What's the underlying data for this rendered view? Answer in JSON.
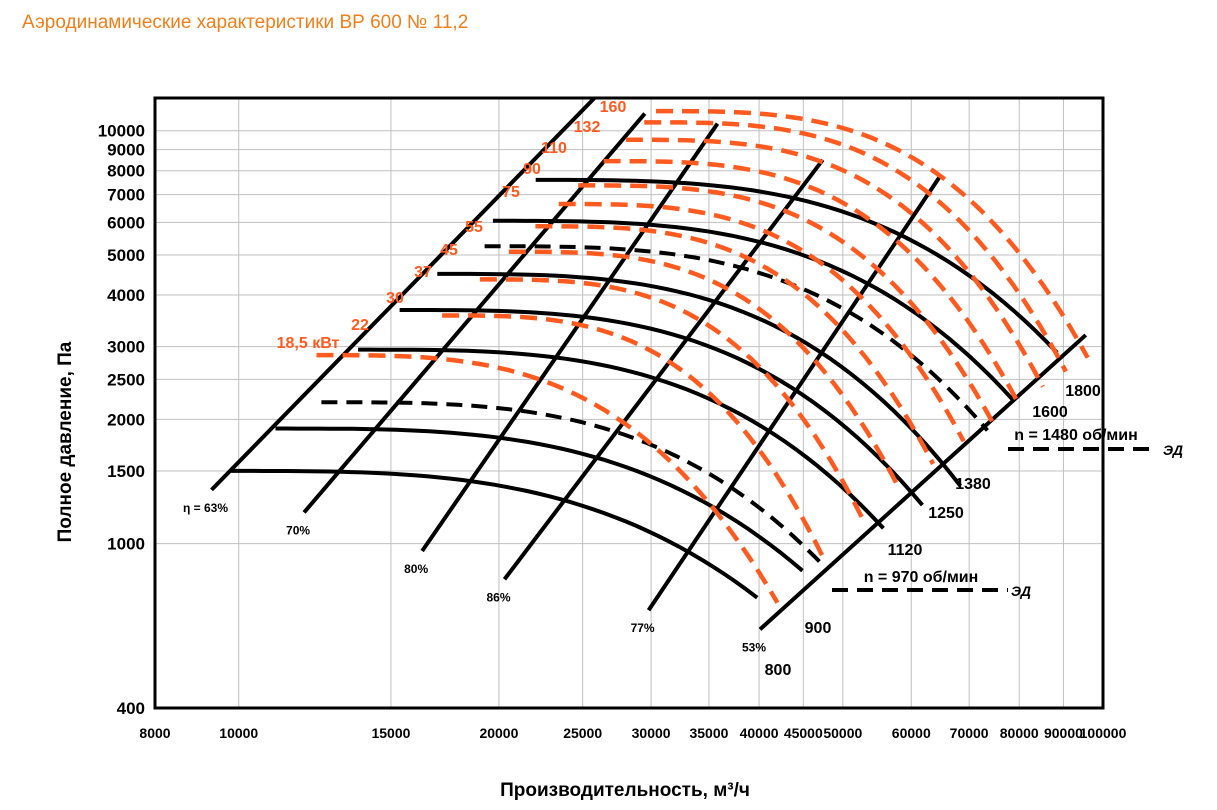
{
  "title": "Аэродинамические характеристики ВР 600 № 11,2",
  "colors": {
    "title": "#ef7f1a",
    "power": "#ff5a1f",
    "curve": "#000000",
    "grid": "#c0c0c0"
  },
  "chart_data": {
    "type": "line",
    "title": "Аэродинамические характеристики ВР 600 № 11,2",
    "xlabel": "Производительность, м³/ч",
    "ylabel": "Полное давление, Па",
    "x_scale": "log",
    "y_scale": "log",
    "xlim": [
      8000,
      100000
    ],
    "ylim": [
      400,
      12000
    ],
    "grid": true,
    "x_ticks": [
      8000,
      10000,
      15000,
      20000,
      25000,
      30000,
      35000,
      40000,
      45000,
      50000,
      60000,
      70000,
      80000,
      90000,
      100000
    ],
    "y_ticks": [
      400,
      1000,
      1500,
      2000,
      2500,
      3000,
      4000,
      5000,
      6000,
      7000,
      8000,
      9000,
      10000
    ],
    "speed_curves": [
      {
        "rpm": "800",
        "p0": 1500,
        "x_end": 39800,
        "p_end": 740
      },
      {
        "rpm": "900",
        "p0": 1900,
        "x_end": 44900,
        "p_end": 860
      },
      {
        "rpm": "1120",
        "p0": 2950,
        "x_end": 55700,
        "p_end": 1090
      },
      {
        "rpm": "1250",
        "p0": 3680,
        "x_end": 61800,
        "p_end": 1240
      },
      {
        "rpm": "1380",
        "p0": 4500,
        "x_end": 68400,
        "p_end": 1380
      },
      {
        "rpm": "1600",
        "p0": 6050,
        "x_end": 78800,
        "p_end": 2220
      },
      {
        "rpm": "1800",
        "p0": 7600,
        "x_end": 88500,
        "p_end": 2900
      }
    ],
    "motor_curves": [
      {
        "label": "n = 970 об/мин",
        "p0": 2200,
        "x_end": 47600,
        "p_end": 880
      },
      {
        "label": "n = 1480 об/мин",
        "p0": 5250,
        "x_end": 73500,
        "p_end": 1880
      }
    ],
    "motor_labels": [
      "ЭД",
      "ЭД"
    ],
    "power_curves": [
      {
        "label": "18,5 кВт",
        "p0": 2950
      },
      {
        "label": "22",
        "p0": 3680
      },
      {
        "label": "30",
        "p0": 4500
      },
      {
        "label": "37",
        "p0": 5250
      },
      {
        "label": "45",
        "p0": 6050
      },
      {
        "label": "55",
        "p0": 6850
      },
      {
        "label": "75",
        "p0": 7600
      },
      {
        "label": "90",
        "p0": 8700
      },
      {
        "label": "110",
        "p0": 9800
      },
      {
        "label": "132",
        "p0": 10800
      },
      {
        "label": "160",
        "p0": 11500
      }
    ],
    "efficiency_lines": [
      {
        "label": "η = 63%",
        "x0": 9300,
        "p0": 1350,
        "x1": 25800,
        "p1": 12000
      },
      {
        "label": "70%",
        "x0": 11900,
        "p0": 1190,
        "x1": 29500,
        "p1": 11000
      },
      {
        "label": "80%",
        "x0": 16300,
        "p0": 960,
        "x1": 35800,
        "p1": 10400
      },
      {
        "label": "86%",
        "x0": 20300,
        "p0": 820,
        "x1": 47400,
        "p1": 8500
      },
      {
        "label": "77%",
        "x0": 29800,
        "p0": 690,
        "x1": 64900,
        "p1": 7800
      },
      {
        "label": "53%",
        "x0": 40100,
        "p0": 620,
        "x1": 95500,
        "p1": 3200
      }
    ]
  }
}
